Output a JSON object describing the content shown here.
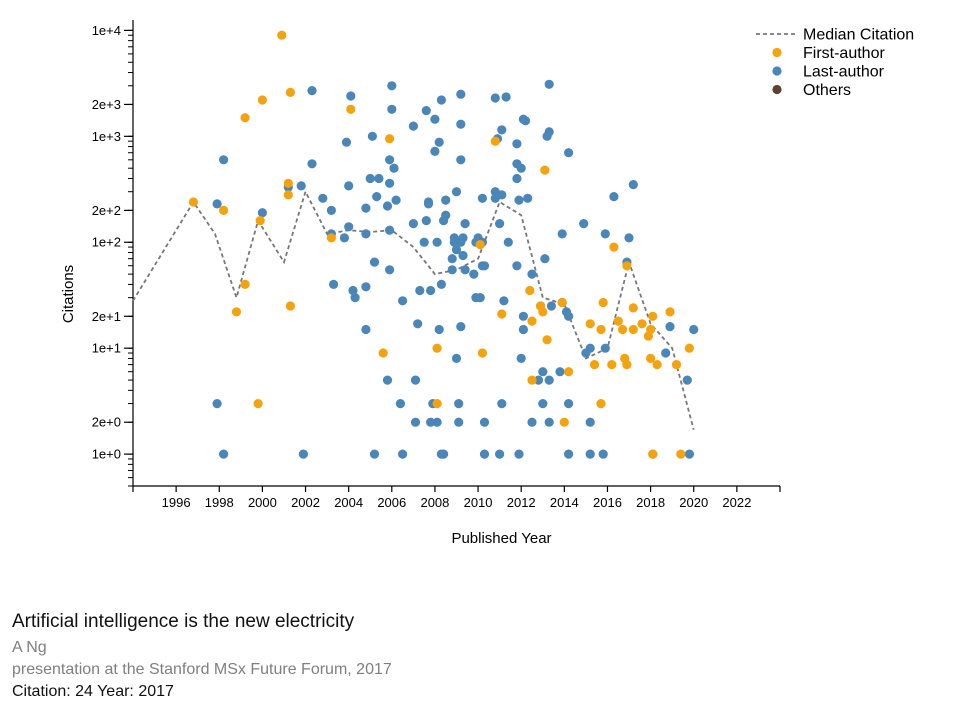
{
  "chart_data": {
    "type": "scatter",
    "title": "",
    "xlabel": "Published Year",
    "ylabel": "Citations",
    "yscale": "log",
    "xlim": [
      1994,
      2024
    ],
    "ylim": [
      0.5,
      12000
    ],
    "x_ticks": [
      1996,
      1998,
      2000,
      2002,
      2004,
      2006,
      2008,
      2010,
      2012,
      2014,
      2016,
      2018,
      2020,
      2022
    ],
    "y_ticks": [
      {
        "value": 1,
        "label": "1e+0"
      },
      {
        "value": 2,
        "label": "2e+0"
      },
      {
        "value": 10,
        "label": "1e+1"
      },
      {
        "value": 20,
        "label": "2e+1"
      },
      {
        "value": 100,
        "label": "1e+2"
      },
      {
        "value": 200,
        "label": "2e+2"
      },
      {
        "value": 1000,
        "label": "1e+3"
      },
      {
        "value": 2000,
        "label": "2e+3"
      },
      {
        "value": 10000,
        "label": "1e+4"
      }
    ],
    "legend": [
      {
        "label": "Median Citation",
        "kind": "line",
        "color": "#777777"
      },
      {
        "label": "First-author",
        "kind": "dot",
        "color": "#f5a20f"
      },
      {
        "label": "Last-author",
        "kind": "dot",
        "color": "#4a86b8"
      },
      {
        "label": "Others",
        "kind": "dot",
        "color": "#5b4334"
      }
    ],
    "legend_position": "top-right",
    "median": {
      "x": [
        1994,
        1996.8,
        1997.8,
        1998.8,
        1999.8,
        2001,
        2002,
        2003,
        2004,
        2005,
        2006,
        2007,
        2008,
        2009,
        2010,
        2011,
        2012,
        2013,
        2014,
        2015,
        2016,
        2017,
        2018,
        2019,
        2020
      ],
      "y": [
        28,
        240,
        120,
        30,
        160,
        65,
        300,
        120,
        130,
        125,
        130,
        90,
        50,
        55,
        70,
        240,
        180,
        30,
        26,
        8,
        10,
        65,
        17,
        10,
        1.7
      ]
    },
    "series": [
      {
        "name": "First-author",
        "color": "#f5a20f",
        "points": [
          [
            1996.8,
            240
          ],
          [
            1998.2,
            200
          ],
          [
            1998.8,
            22
          ],
          [
            1999.2,
            1500
          ],
          [
            1999.2,
            40
          ],
          [
            1999.8,
            3
          ],
          [
            1999.9,
            160
          ],
          [
            2000,
            2200
          ],
          [
            2000.9,
            9000
          ],
          [
            2001.2,
            360
          ],
          [
            2001.2,
            280
          ],
          [
            2001.3,
            2600
          ],
          [
            2001.3,
            25
          ],
          [
            2003.2,
            110
          ],
          [
            2004.1,
            1800
          ],
          [
            2005.6,
            9
          ],
          [
            2005.9,
            950
          ],
          [
            2008.1,
            10
          ],
          [
            2008.1,
            3
          ],
          [
            2010.1,
            95
          ],
          [
            2010.2,
            9
          ],
          [
            2010.8,
            900
          ],
          [
            2011.1,
            21
          ],
          [
            2012.4,
            35
          ],
          [
            2012.5,
            18
          ],
          [
            2012.5,
            5
          ],
          [
            2012.9,
            25
          ],
          [
            2013.0,
            22
          ],
          [
            2013.1,
            480
          ],
          [
            2013.2,
            12
          ],
          [
            2013.9,
            27
          ],
          [
            2014.0,
            2
          ],
          [
            2014.2,
            6
          ],
          [
            2015.2,
            17
          ],
          [
            2015.4,
            7
          ],
          [
            2015.7,
            15
          ],
          [
            2015.7,
            3
          ],
          [
            2015.8,
            27
          ],
          [
            2016.2,
            7
          ],
          [
            2016.3,
            90
          ],
          [
            2016.5,
            18
          ],
          [
            2016.7,
            15
          ],
          [
            2016.8,
            8
          ],
          [
            2016.9,
            60
          ],
          [
            2016.9,
            7
          ],
          [
            2017.2,
            15
          ],
          [
            2017.2,
            24
          ],
          [
            2017.6,
            17
          ],
          [
            2017.9,
            13
          ],
          [
            2018.0,
            15
          ],
          [
            2018.0,
            8
          ],
          [
            2018.1,
            20
          ],
          [
            2018.1,
            1
          ],
          [
            2018.3,
            7
          ],
          [
            2018.9,
            22
          ],
          [
            2019.2,
            7
          ],
          [
            2019.4,
            1
          ],
          [
            2019.8,
            10
          ]
        ]
      },
      {
        "name": "Last-author",
        "color": "#4a86b8",
        "points": [
          [
            1997.9,
            230
          ],
          [
            1997.9,
            3
          ],
          [
            1998.2,
            600
          ],
          [
            1998.2,
            1
          ],
          [
            2000,
            190
          ],
          [
            2001.2,
            330
          ],
          [
            2001.8,
            340
          ],
          [
            2001.9,
            1
          ],
          [
            2002.3,
            550
          ],
          [
            2002.3,
            2700
          ],
          [
            2002.8,
            260
          ],
          [
            2003.2,
            200
          ],
          [
            2003.2,
            120
          ],
          [
            2003.3,
            40
          ],
          [
            2003.8,
            110
          ],
          [
            2003.9,
            880
          ],
          [
            2004.0,
            140
          ],
          [
            2004.0,
            340
          ],
          [
            2004.1,
            2400
          ],
          [
            2004.2,
            35
          ],
          [
            2004.3,
            30
          ],
          [
            2004.8,
            210
          ],
          [
            2004.8,
            120
          ],
          [
            2004.8,
            38
          ],
          [
            2004.8,
            15
          ],
          [
            2005.0,
            400
          ],
          [
            2005.1,
            1000
          ],
          [
            2005.2,
            65
          ],
          [
            2005.2,
            1
          ],
          [
            2005.3,
            270
          ],
          [
            2005.4,
            400
          ],
          [
            2005.8,
            220
          ],
          [
            2005.8,
            5
          ],
          [
            2005.9,
            600
          ],
          [
            2005.9,
            130
          ],
          [
            2005.9,
            55
          ],
          [
            2005.9,
            360
          ],
          [
            2006.0,
            3000
          ],
          [
            2006.0,
            1800
          ],
          [
            2006.1,
            500
          ],
          [
            2006.2,
            250
          ],
          [
            2006.4,
            3
          ],
          [
            2006.5,
            28
          ],
          [
            2006.5,
            1
          ],
          [
            2007.0,
            1250
          ],
          [
            2007.0,
            150
          ],
          [
            2007.1,
            5
          ],
          [
            2007.1,
            2
          ],
          [
            2007.2,
            17
          ],
          [
            2007.3,
            35
          ],
          [
            2007.5,
            100
          ],
          [
            2007.6,
            1750
          ],
          [
            2007.6,
            160
          ],
          [
            2007.7,
            230
          ],
          [
            2007.7,
            240
          ],
          [
            2007.8,
            35
          ],
          [
            2007.8,
            2
          ],
          [
            2007.9,
            3
          ],
          [
            2008.0,
            1450
          ],
          [
            2008.0,
            720
          ],
          [
            2008.1,
            100
          ],
          [
            2008.1,
            2
          ],
          [
            2008.2,
            880
          ],
          [
            2008.2,
            15
          ],
          [
            2008.3,
            2200
          ],
          [
            2008.3,
            40
          ],
          [
            2008.3,
            1
          ],
          [
            2008.4,
            1
          ],
          [
            2008.4,
            160
          ],
          [
            2008.5,
            180
          ],
          [
            2008.5,
            250
          ],
          [
            2008.8,
            70
          ],
          [
            2008.8,
            55
          ],
          [
            2008.9,
            110
          ],
          [
            2008.9,
            100
          ],
          [
            2009.0,
            300
          ],
          [
            2009.0,
            85
          ],
          [
            2009.0,
            8
          ],
          [
            2009.1,
            2
          ],
          [
            2009.1,
            3
          ],
          [
            2009.2,
            2500
          ],
          [
            2009.2,
            1300
          ],
          [
            2009.2,
            600
          ],
          [
            2009.2,
            100
          ],
          [
            2009.2,
            16
          ],
          [
            2009.3,
            110
          ],
          [
            2009.3,
            75
          ],
          [
            2009.4,
            55
          ],
          [
            2009.4,
            150
          ],
          [
            2009.8,
            50
          ],
          [
            2009.9,
            100
          ],
          [
            2009.9,
            30
          ],
          [
            2010.0,
            110
          ],
          [
            2010.1,
            30
          ],
          [
            2010.2,
            100
          ],
          [
            2010.2,
            60
          ],
          [
            2010.2,
            260
          ],
          [
            2010.3,
            2
          ],
          [
            2010.3,
            1
          ],
          [
            2010.3,
            60
          ],
          [
            2010.8,
            2300
          ],
          [
            2010.8,
            300
          ],
          [
            2010.8,
            260
          ],
          [
            2010.9,
            950
          ],
          [
            2011.0,
            150
          ],
          [
            2011.0,
            1
          ],
          [
            2011.1,
            1150
          ],
          [
            2011.1,
            280
          ],
          [
            2011.1,
            3
          ],
          [
            2011.2,
            28
          ],
          [
            2011.3,
            2350
          ],
          [
            2011.4,
            100
          ],
          [
            2011.8,
            850
          ],
          [
            2011.8,
            550
          ],
          [
            2011.8,
            60
          ],
          [
            2011.8,
            400
          ],
          [
            2011.9,
            250
          ],
          [
            2011.9,
            1
          ],
          [
            2012.0,
            500
          ],
          [
            2012.0,
            8
          ],
          [
            2012.1,
            1450
          ],
          [
            2012.1,
            20
          ],
          [
            2012.1,
            15
          ],
          [
            2012.2,
            1400
          ],
          [
            2012.3,
            260
          ],
          [
            2012.5,
            2
          ],
          [
            2012.5,
            50
          ],
          [
            2012.8,
            5
          ],
          [
            2012.9,
            25
          ],
          [
            2013.0,
            6
          ],
          [
            2013.0,
            3
          ],
          [
            2013.1,
            70
          ],
          [
            2013.2,
            1000
          ],
          [
            2013.3,
            1100
          ],
          [
            2013.3,
            3100
          ],
          [
            2013.3,
            5
          ],
          [
            2013.3,
            2
          ],
          [
            2013.4,
            25
          ],
          [
            2013.8,
            6
          ],
          [
            2013.9,
            120
          ],
          [
            2013.9,
            27
          ],
          [
            2014.1,
            22
          ],
          [
            2014.2,
            20
          ],
          [
            2014.2,
            1
          ],
          [
            2014.2,
            700
          ],
          [
            2014.2,
            3
          ],
          [
            2014.9,
            150
          ],
          [
            2015.0,
            9
          ],
          [
            2015.2,
            10
          ],
          [
            2015.2,
            2
          ],
          [
            2015.2,
            1
          ],
          [
            2015.8,
            1
          ],
          [
            2015.9,
            10
          ],
          [
            2015.9,
            120
          ],
          [
            2016.3,
            270
          ],
          [
            2016.9,
            65
          ],
          [
            2017.0,
            110
          ],
          [
            2017.2,
            350
          ],
          [
            2018.1,
            1
          ],
          [
            2018.7,
            9
          ],
          [
            2018.9,
            16
          ],
          [
            2019.7,
            5
          ],
          [
            2019.8,
            1
          ],
          [
            2020.0,
            15
          ]
        ]
      },
      {
        "name": "Others",
        "color": "#5b4334",
        "points": []
      }
    ]
  },
  "info": {
    "title": "Artificial intelligence is the new electricity",
    "author": "A Ng",
    "venue": "presentation at the Stanford MSx Future Forum, 2017",
    "citation_line": "Citation: 24 Year: 2017"
  }
}
